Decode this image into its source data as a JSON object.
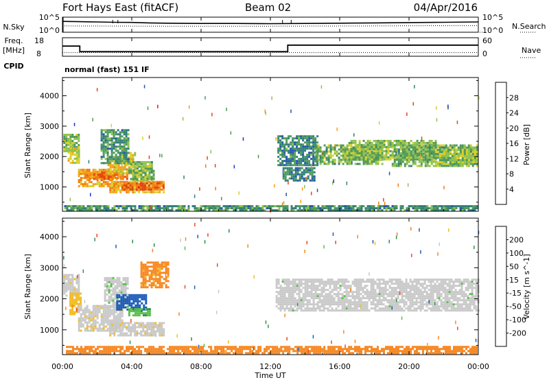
{
  "header": {
    "title": "Fort Hays East (fitACF)",
    "beam": "Beam 02",
    "date": "04/Apr/2016"
  },
  "side_labels": {
    "nsky": "N.Sky",
    "freq_line1": "Freq.",
    "freq_line2": "[MHz]",
    "cpid": "CPID",
    "nsearch": "N.Search",
    "nave": "Nave"
  },
  "cpid_text": "normal (fast) 151 IF",
  "chart_data": [
    {
      "type": "line",
      "title": "N.Sky / N.Search",
      "y_left_ticks": [
        "10^5",
        "10^0"
      ],
      "y_right_ticks": [
        "10^5",
        "10^0"
      ],
      "series": [
        {
          "name": "N.Sky",
          "style": "solid",
          "x_hours": [
            0,
            1,
            2,
            3,
            4,
            5,
            6,
            8,
            10,
            12,
            14,
            16,
            18,
            20,
            22,
            24
          ],
          "level": [
            0.72,
            0.7,
            0.68,
            0.66,
            0.65,
            0.62,
            0.6,
            0.58,
            0.58,
            0.57,
            0.58,
            0.6,
            0.62,
            0.64,
            0.66,
            0.68
          ]
        },
        {
          "name": "N.Search",
          "style": "dotted",
          "x_hours": [
            0,
            6,
            12,
            18,
            24
          ],
          "level": [
            0.42,
            0.4,
            0.4,
            0.42,
            0.44
          ]
        }
      ]
    },
    {
      "type": "line",
      "title": "Freq / Nave",
      "freq_ticks": [
        "18",
        "8"
      ],
      "nave_ticks": [
        "60",
        "0"
      ],
      "series": [
        {
          "name": "Freq.",
          "style": "solid",
          "x_hours": [
            0,
            1.0,
            1.0,
            13.0,
            13.0,
            24
          ],
          "mhz": [
            13.5,
            13.5,
            10.5,
            10.5,
            14.0,
            14.0
          ]
        },
        {
          "name": "Nave",
          "style": "dotted",
          "x_hours": [
            0,
            24
          ],
          "value": [
            12,
            12
          ]
        }
      ]
    },
    {
      "type": "heatmap",
      "title": "Power",
      "ylabel": "Slant Range [km]",
      "yticks": [
        1000,
        2000,
        3000,
        4000
      ],
      "ylim": [
        200,
        4600
      ],
      "xlim": [
        0,
        24
      ],
      "colorbar": {
        "label": "Power [dB]",
        "ticks": [
          4,
          8,
          12,
          16,
          20,
          24,
          28
        ],
        "range": [
          0,
          32
        ],
        "colors": [
          "#1f30d8",
          "#2556a8",
          "#2f7f78",
          "#4f9a5c",
          "#8fc050",
          "#d9d02a",
          "#f5a018",
          "#f07c12",
          "#e34410",
          "#d81a10"
        ]
      },
      "patches": [
        {
          "t0": 0.05,
          "t1": 1.0,
          "r0": 2150,
          "r1": 2750,
          "db": 14
        },
        {
          "t0": 0.3,
          "t1": 0.9,
          "r0": 1800,
          "r1": 2300,
          "db": 18
        },
        {
          "t0": 0.9,
          "t1": 3.2,
          "r0": 1050,
          "r1": 1600,
          "db": 22
        },
        {
          "t0": 1.3,
          "t1": 3.7,
          "r0": 1250,
          "r1": 1500,
          "db": 24
        },
        {
          "t0": 2.6,
          "t1": 4.1,
          "r0": 1450,
          "r1": 1950,
          "db": 19
        },
        {
          "t0": 3.3,
          "t1": 4.2,
          "r0": 1750,
          "r1": 2150,
          "db": 17
        },
        {
          "t0": 2.2,
          "t1": 3.8,
          "r0": 1750,
          "r1": 2900,
          "db": 10
        },
        {
          "t0": 3.8,
          "t1": 5.2,
          "r0": 1500,
          "r1": 1850,
          "db": 13
        },
        {
          "t0": 3.9,
          "t1": 5.3,
          "r0": 1200,
          "r1": 1700,
          "db": 14
        },
        {
          "t0": 2.7,
          "t1": 5.8,
          "r0": 850,
          "r1": 1200,
          "db": 20
        },
        {
          "t0": 3.4,
          "t1": 5.8,
          "r0": 900,
          "r1": 1150,
          "db": 25
        },
        {
          "t0": 12.4,
          "t1": 14.7,
          "r0": 1700,
          "r1": 2700,
          "db": 9
        },
        {
          "t0": 14.6,
          "t1": 18.5,
          "r0": 1750,
          "r1": 2400,
          "db": 13
        },
        {
          "t0": 16.5,
          "t1": 21.6,
          "r0": 1900,
          "r1": 2550,
          "db": 14
        },
        {
          "t0": 19.0,
          "t1": 23.9,
          "r0": 1700,
          "r1": 2400,
          "db": 13
        },
        {
          "t0": 21.5,
          "t1": 23.9,
          "r0": 1800,
          "r1": 2250,
          "db": 15
        },
        {
          "t0": 0.1,
          "t1": 23.9,
          "r0": 220,
          "r1": 400,
          "db": 10
        },
        {
          "t0": 12.7,
          "t1": 14.5,
          "r0": 1200,
          "r1": 1650,
          "db": 8
        }
      ]
    },
    {
      "type": "heatmap",
      "title": "Velocity",
      "ylabel": "Slant Range [km]",
      "yticks": [
        1000,
        2000,
        3000,
        4000
      ],
      "ylim": [
        200,
        4600
      ],
      "xlim": [
        0,
        24
      ],
      "xlabel": "Time UT",
      "xticks": [
        "00:00",
        "04:00",
        "08:00",
        "12:00",
        "16:00",
        "20:00",
        "00:00"
      ],
      "colorbar": {
        "label": "Velocity [m s^-1]",
        "ticks": [
          200,
          100,
          50,
          15,
          -15,
          -50,
          -100,
          -200
        ],
        "range": [
          -250,
          250
        ],
        "colors": [
          "#e81818",
          "#f04818",
          "#f7861e",
          "#f2bd28",
          "#c9c9c9",
          "#58c048",
          "#2a8f4a",
          "#1a5ab8",
          "#1a2ad0"
        ]
      },
      "patches": [
        {
          "t0": 0.05,
          "t1": 1.0,
          "r0": 2100,
          "r1": 2800,
          "v": -5
        },
        {
          "t0": 0.4,
          "t1": 1.0,
          "r0": 1500,
          "r1": 2200,
          "v": -40
        },
        {
          "t0": 0.9,
          "t1": 3.5,
          "r0": 1000,
          "r1": 1800,
          "v": -5
        },
        {
          "t0": 2.4,
          "t1": 3.8,
          "r0": 1750,
          "r1": 2700,
          "v": 5
        },
        {
          "t0": 3.1,
          "t1": 4.8,
          "r0": 1650,
          "r1": 2150,
          "v": 130
        },
        {
          "t0": 3.8,
          "t1": 5.0,
          "r0": 1450,
          "r1": 1700,
          "v": 40
        },
        {
          "t0": 2.7,
          "t1": 5.8,
          "r0": 850,
          "r1": 1250,
          "v": -5
        },
        {
          "t0": 4.5,
          "t1": 6.1,
          "r0": 2400,
          "r1": 3200,
          "v": -60
        },
        {
          "t0": 12.3,
          "t1": 24.0,
          "r0": 1600,
          "r1": 2650,
          "v": 3
        },
        {
          "t0": 0.2,
          "t1": 23.9,
          "r0": 220,
          "r1": 480,
          "v": -70
        }
      ]
    }
  ]
}
